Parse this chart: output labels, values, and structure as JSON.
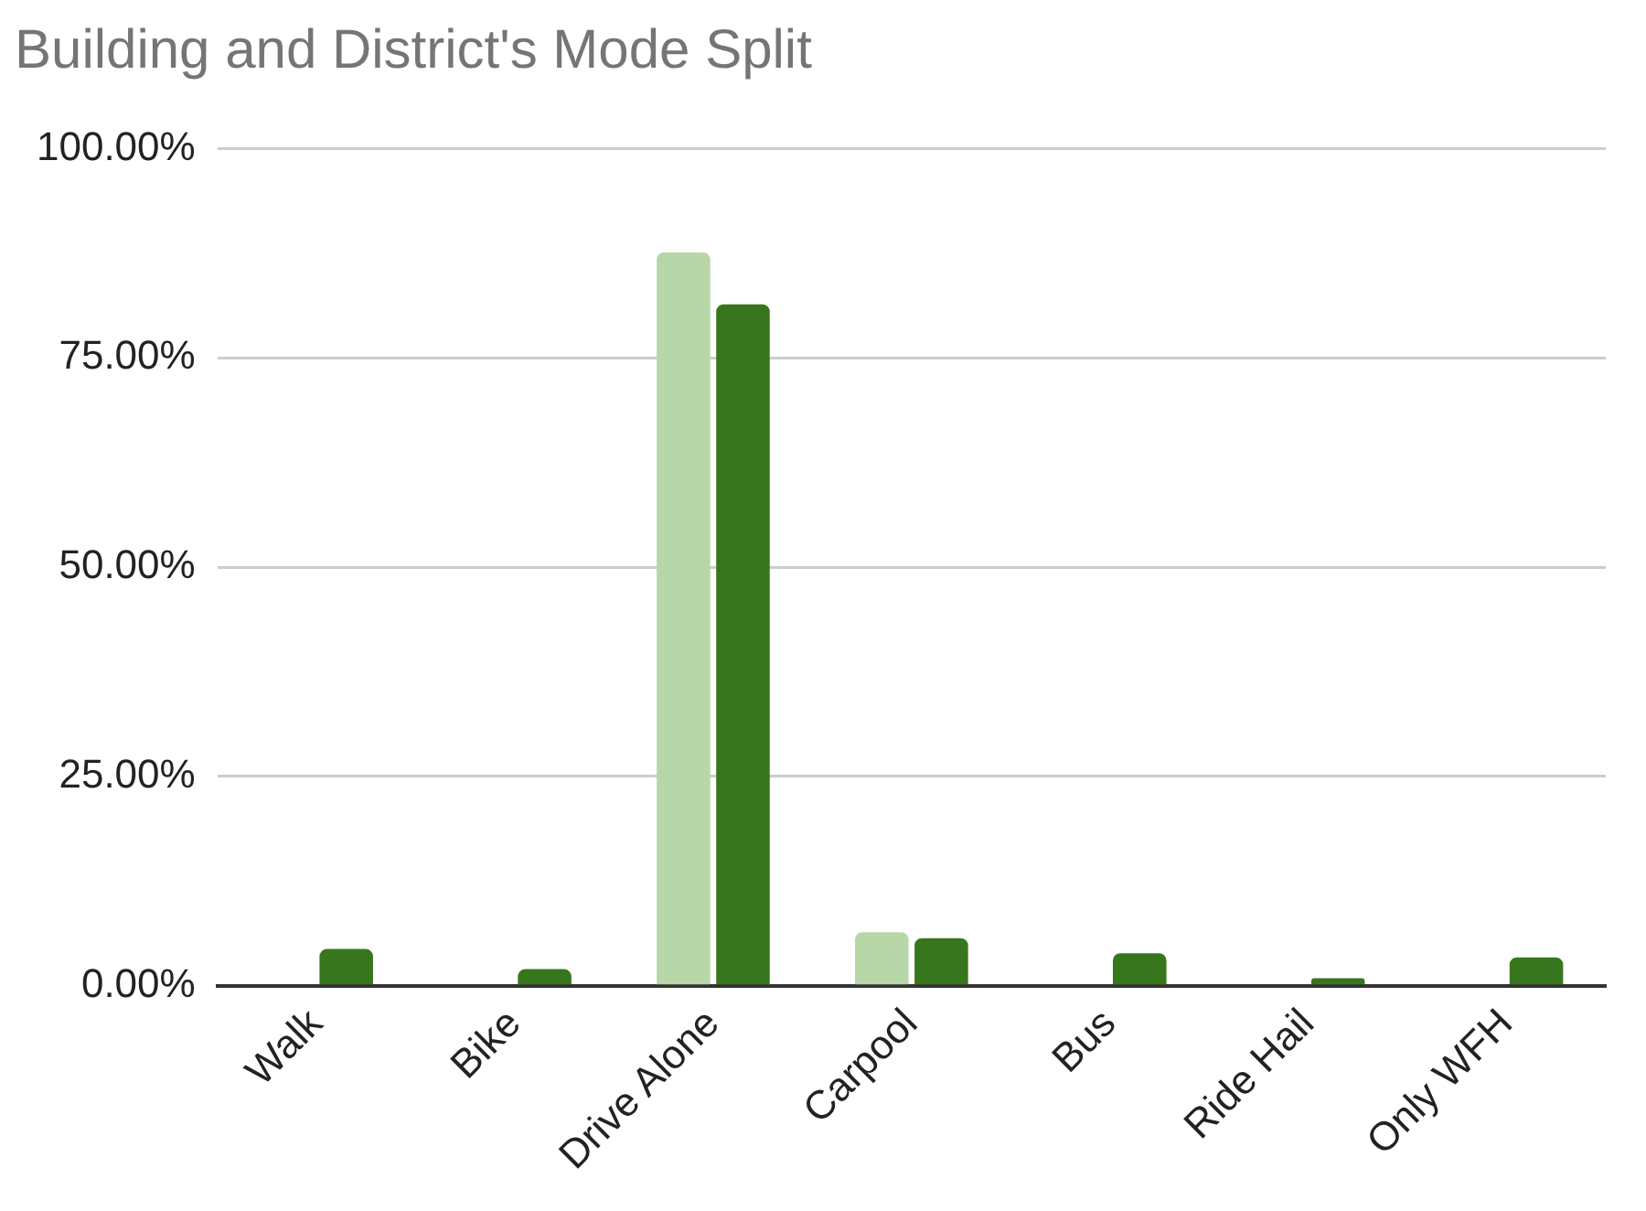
{
  "chart_data": {
    "type": "bar",
    "title": "Building and District's Mode Split",
    "categories": [
      "Walk",
      "Bike",
      "Drive Alone",
      "Carpool",
      "Bus",
      "Ride Hail",
      "Only WFH"
    ],
    "series": [
      {
        "color": "#b7d7a8",
        "values": [
          null,
          null,
          87.6,
          6.4,
          null,
          null,
          null
        ]
      },
      {
        "color": "#38761d",
        "values": [
          4.4,
          2.0,
          81.4,
          5.7,
          3.9,
          0.9,
          3.4
        ]
      }
    ],
    "ylim": [
      0,
      100
    ],
    "yticks": [
      {
        "value": 0,
        "label": "0.00%"
      },
      {
        "value": 25,
        "label": "25.00%"
      },
      {
        "value": 50,
        "label": "50.00%"
      },
      {
        "value": 75,
        "label": "75.00%"
      },
      {
        "value": 100,
        "label": "100.00%"
      }
    ],
    "grid": "y"
  }
}
